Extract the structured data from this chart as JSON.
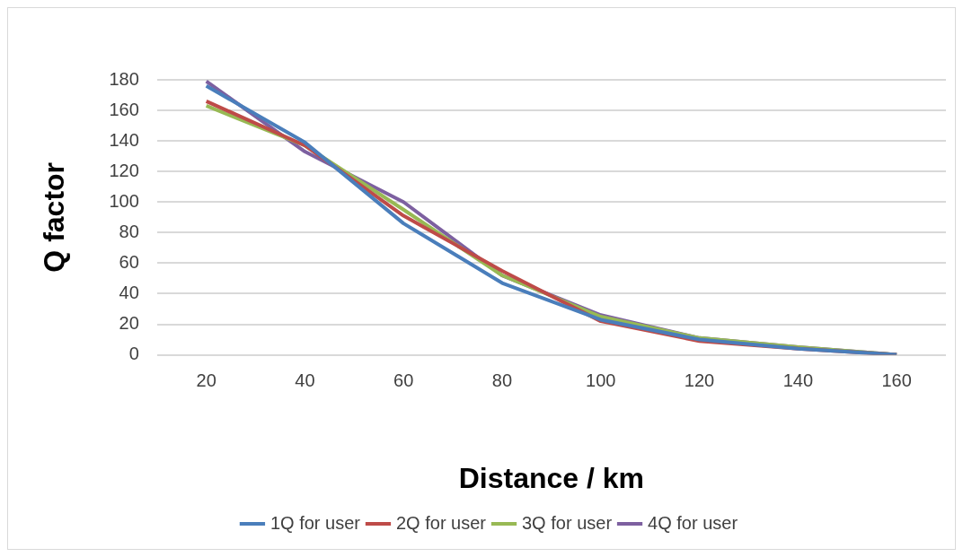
{
  "chart_data": {
    "type": "line",
    "xlabel": "Distance / km",
    "ylabel": "Q factor",
    "categories": [
      "20",
      "40",
      "60",
      "80",
      "100",
      "120",
      "140",
      "160"
    ],
    "series": [
      {
        "name": "1Q for user",
        "color": "#4a7ebb",
        "values": [
          176,
          139,
          86,
          47,
          23,
          10,
          4,
          0
        ]
      },
      {
        "name": "2Q for user",
        "color": "#be4b48",
        "values": [
          166,
          137,
          91,
          55,
          22,
          9,
          4,
          0
        ]
      },
      {
        "name": "3Q for user",
        "color": "#98b954",
        "values": [
          163,
          137,
          95,
          52,
          25,
          11,
          5,
          0
        ]
      },
      {
        "name": "4Q for user",
        "color": "#7d60a0",
        "values": [
          179,
          133,
          100,
          52,
          26,
          11,
          5,
          0
        ]
      }
    ],
    "ylim": [
      0,
      180
    ],
    "yticks": [
      0,
      20,
      40,
      60,
      80,
      100,
      120,
      140,
      160,
      180
    ],
    "grid": "y",
    "legend": "bottom",
    "marker": "none",
    "line_style": "solid"
  }
}
